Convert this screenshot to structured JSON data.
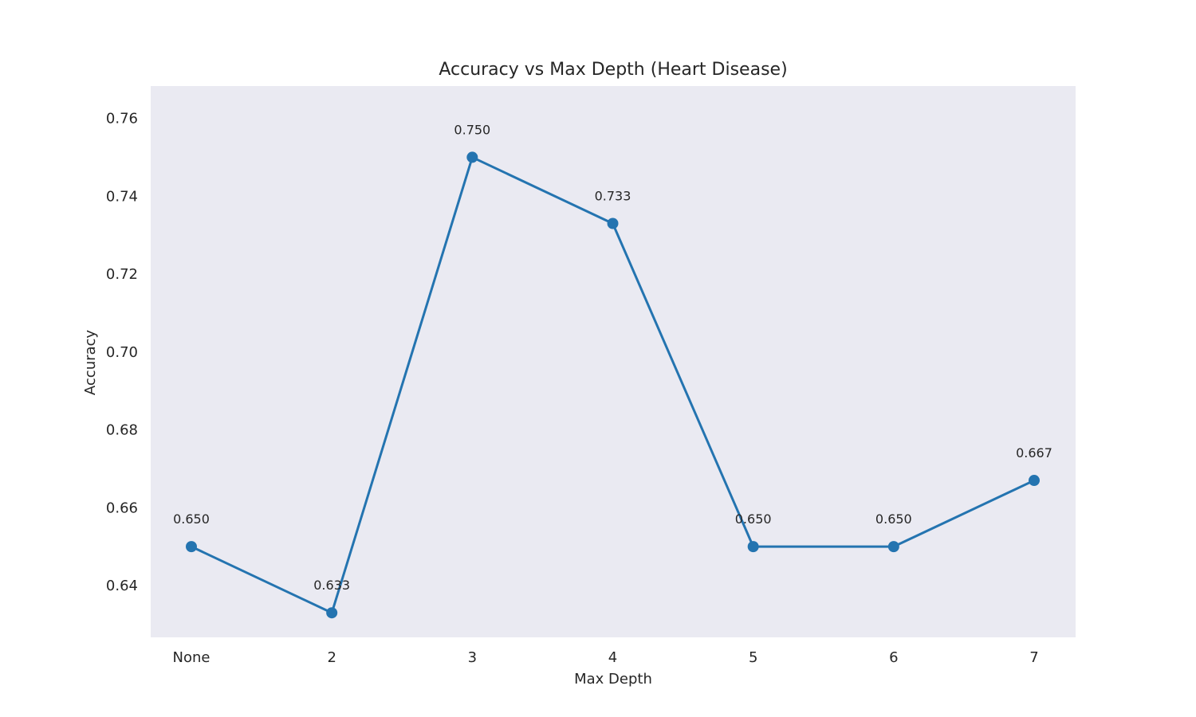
{
  "chart_data": {
    "type": "line",
    "title": "Accuracy vs Max Depth (Heart Disease)",
    "xlabel": "Max Depth",
    "ylabel": "Accuracy",
    "categories": [
      "None",
      "2",
      "3",
      "4",
      "5",
      "6",
      "7"
    ],
    "series": [
      {
        "values": [
          0.65,
          0.633,
          0.75,
          0.733,
          0.65,
          0.65,
          0.667
        ],
        "data_labels": [
          "0.650",
          "0.633",
          "0.750",
          "0.733",
          "0.650",
          "0.650",
          "0.667"
        ],
        "color": "#2474b0",
        "marker": "circle"
      }
    ],
    "ylim": [
      0.6267,
      0.7683
    ],
    "yticks": [
      0.64,
      0.66,
      0.68,
      0.7,
      0.72,
      0.74,
      0.76
    ],
    "ytick_labels": [
      "0.64",
      "0.66",
      "0.68",
      "0.70",
      "0.72",
      "0.74",
      "0.76"
    ],
    "grid": false,
    "legend": "none",
    "plot_background": "#eaeaf2"
  }
}
